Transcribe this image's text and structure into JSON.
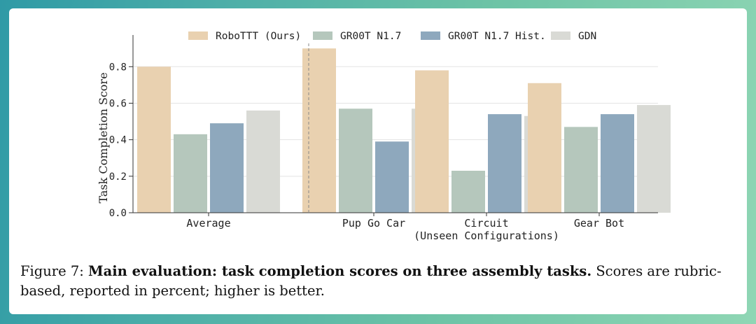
{
  "chart_data": {
    "type": "bar",
    "categories": [
      "Average",
      "Pup Go Car",
      "Circuit\n(Unseen Configurations)",
      "Gear Bot"
    ],
    "ylabel": "Task Completion Score",
    "xlabel": "",
    "ylim": [
      0.0,
      0.92
    ],
    "yticks": [
      "0.0",
      "0.2",
      "0.4",
      "0.6",
      "0.8"
    ],
    "grid": "horizontal",
    "legend_position": "top",
    "series": [
      {
        "name": "RoboTTT (Ours)",
        "color": "#e9d1b0",
        "values": [
          0.8,
          0.9,
          0.78,
          0.71
        ]
      },
      {
        "name": "GR00T N1.7",
        "color": "#b5c7bc",
        "values": [
          0.43,
          0.57,
          0.23,
          0.47
        ]
      },
      {
        "name": "GR00T N1.7 Hist.",
        "color": "#8ea8bd",
        "values": [
          0.49,
          0.39,
          0.54,
          0.54
        ]
      },
      {
        "name": "GDN",
        "color": "#d9dad5",
        "values": [
          0.56,
          0.57,
          0.53,
          0.59
        ]
      }
    ]
  },
  "caption": {
    "prefix": "Figure 7: ",
    "bold": "Main evaluation: task completion scores on three assembly tasks.",
    "rest": " Scores are rubric-based, reported in percent; higher is better."
  }
}
